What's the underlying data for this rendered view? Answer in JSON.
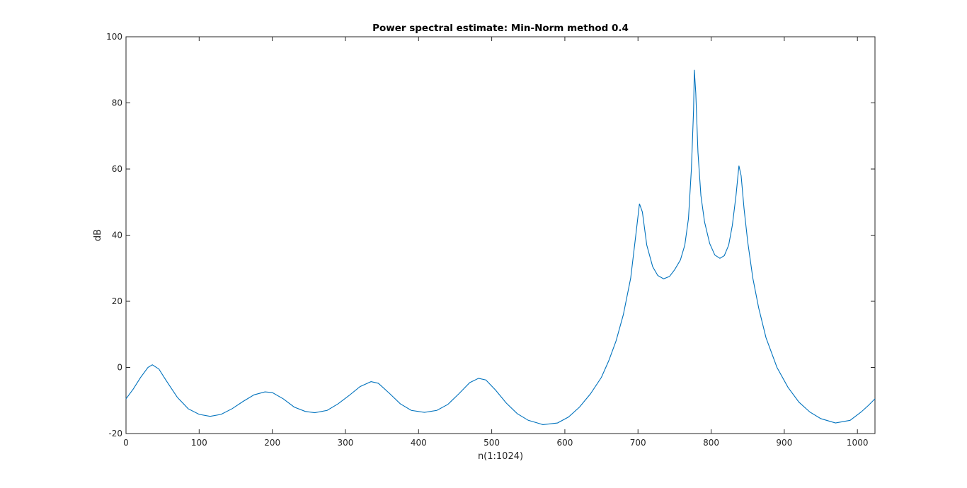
{
  "chart_data": {
    "type": "line",
    "title": "Power spectral estimate: Min-Norm method 0.4",
    "xlabel": "n(1:1024)",
    "ylabel": "dB",
    "xlim": [
      0,
      1024
    ],
    "ylim": [
      -20,
      100
    ],
    "xticks": [
      0,
      100,
      200,
      300,
      400,
      500,
      600,
      700,
      800,
      900,
      1000
    ],
    "yticks": [
      -20,
      0,
      20,
      40,
      60,
      80,
      100
    ],
    "xtick_labels": [
      "0",
      "100",
      "200",
      "300",
      "400",
      "500",
      "600",
      "700",
      "800",
      "900",
      "1000"
    ],
    "ytick_labels": [
      "-20",
      "0",
      "20",
      "40",
      "60",
      "80",
      "100"
    ],
    "grid": false,
    "box": true,
    "legend": "none",
    "series": [
      {
        "color": "#0072bd",
        "points": [
          [
            0,
            -9.5
          ],
          [
            10,
            -6.5
          ],
          [
            20,
            -3
          ],
          [
            30,
            0
          ],
          [
            36,
            0.8
          ],
          [
            45,
            -0.5
          ],
          [
            55,
            -4
          ],
          [
            70,
            -9
          ],
          [
            85,
            -12.5
          ],
          [
            100,
            -14.2
          ],
          [
            115,
            -14.8
          ],
          [
            130,
            -14.2
          ],
          [
            145,
            -12.5
          ],
          [
            160,
            -10.3
          ],
          [
            175,
            -8.3
          ],
          [
            190,
            -7.4
          ],
          [
            200,
            -7.6
          ],
          [
            215,
            -9.5
          ],
          [
            230,
            -12
          ],
          [
            245,
            -13.3
          ],
          [
            258,
            -13.7
          ],
          [
            275,
            -13
          ],
          [
            290,
            -11
          ],
          [
            305,
            -8.5
          ],
          [
            320,
            -5.8
          ],
          [
            335,
            -4.3
          ],
          [
            345,
            -4.8
          ],
          [
            360,
            -7.8
          ],
          [
            375,
            -11
          ],
          [
            390,
            -13
          ],
          [
            408,
            -13.6
          ],
          [
            425,
            -13
          ],
          [
            440,
            -11.2
          ],
          [
            455,
            -8
          ],
          [
            470,
            -4.6
          ],
          [
            482,
            -3.3
          ],
          [
            492,
            -3.8
          ],
          [
            505,
            -6.8
          ],
          [
            520,
            -10.8
          ],
          [
            535,
            -14
          ],
          [
            550,
            -16
          ],
          [
            570,
            -17.3
          ],
          [
            590,
            -16.8
          ],
          [
            605,
            -15
          ],
          [
            620,
            -12
          ],
          [
            635,
            -8
          ],
          [
            650,
            -3
          ],
          [
            660,
            2
          ],
          [
            670,
            8
          ],
          [
            680,
            16
          ],
          [
            690,
            27
          ],
          [
            697,
            40
          ],
          [
            702,
            49.5
          ],
          [
            706,
            47
          ],
          [
            712,
            37
          ],
          [
            720,
            30.5
          ],
          [
            727,
            27.8
          ],
          [
            735,
            26.8
          ],
          [
            743,
            27.5
          ],
          [
            750,
            29.5
          ],
          [
            758,
            32.5
          ],
          [
            764,
            37
          ],
          [
            769,
            45
          ],
          [
            773,
            60
          ],
          [
            776,
            78
          ],
          [
            777,
            90
          ],
          [
            779,
            83
          ],
          [
            782,
            65
          ],
          [
            786,
            52
          ],
          [
            791,
            44
          ],
          [
            798,
            37.5
          ],
          [
            805,
            34
          ],
          [
            812,
            33
          ],
          [
            818,
            33.8
          ],
          [
            824,
            37
          ],
          [
            829,
            43
          ],
          [
            834,
            52
          ],
          [
            838,
            61
          ],
          [
            841,
            58
          ],
          [
            845,
            48
          ],
          [
            850,
            38
          ],
          [
            857,
            27
          ],
          [
            865,
            18
          ],
          [
            875,
            9
          ],
          [
            890,
            0
          ],
          [
            905,
            -6
          ],
          [
            920,
            -10.5
          ],
          [
            935,
            -13.5
          ],
          [
            950,
            -15.5
          ],
          [
            970,
            -16.8
          ],
          [
            990,
            -16
          ],
          [
            1005,
            -13.5
          ],
          [
            1015,
            -11.5
          ],
          [
            1024,
            -9.5
          ]
        ]
      }
    ]
  }
}
